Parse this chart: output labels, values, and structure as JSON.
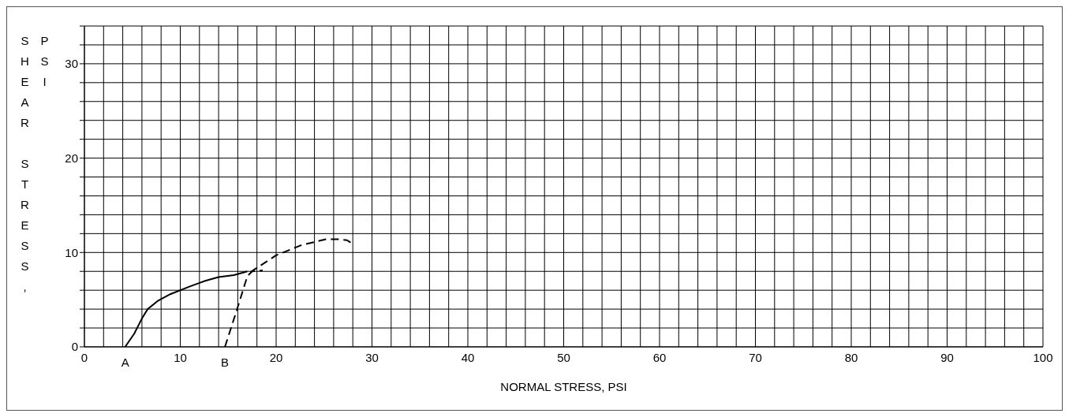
{
  "chart_data": {
    "type": "line",
    "xlabel": "NORMAL STRESS, PSI",
    "ylabel": "SHEAR STRESS, PSI",
    "xlim": [
      0,
      100
    ],
    "ylim": [
      0,
      34
    ],
    "xticks": [
      0,
      {
        "value": 2,
        "label": null
      },
      {
        "value": 4,
        "label": null
      },
      {
        "value": 6,
        "label": null
      },
      {
        "value": 8,
        "label": null
      },
      10,
      {
        "value": 12,
        "label": null
      },
      {
        "value": 14,
        "label": null
      },
      {
        "value": 16,
        "label": null
      },
      {
        "value": 18,
        "label": null
      },
      20,
      {
        "value": 22,
        "label": null
      },
      {
        "value": 24,
        "label": null
      },
      {
        "value": 26,
        "label": null
      },
      {
        "value": 28,
        "label": null
      },
      30,
      {
        "value": 32,
        "label": null
      },
      {
        "value": 34,
        "label": null
      },
      {
        "value": 36,
        "label": null
      },
      {
        "value": 38,
        "label": null
      },
      40,
      {
        "value": 42,
        "label": null
      },
      {
        "value": 44,
        "label": null
      },
      {
        "value": 46,
        "label": null
      },
      {
        "value": 48,
        "label": null
      },
      50,
      {
        "value": 52,
        "label": null
      },
      {
        "value": 54,
        "label": null
      },
      {
        "value": 56,
        "label": null
      },
      {
        "value": 58,
        "label": null
      },
      60,
      {
        "value": 62,
        "label": null
      },
      {
        "value": 64,
        "label": null
      },
      {
        "value": 66,
        "label": null
      },
      {
        "value": 68,
        "label": null
      },
      70,
      {
        "value": 72,
        "label": null
      },
      {
        "value": 74,
        "label": null
      },
      {
        "value": 76,
        "label": null
      },
      {
        "value": 78,
        "label": null
      },
      80,
      {
        "value": 82,
        "label": null
      },
      {
        "value": 84,
        "label": null
      },
      {
        "value": 86,
        "label": null
      },
      {
        "value": 88,
        "label": null
      },
      90,
      {
        "value": 92,
        "label": null
      },
      {
        "value": 94,
        "label": null
      },
      {
        "value": 96,
        "label": null
      },
      {
        "value": 98,
        "label": null
      },
      100
    ],
    "yticks": [
      0,
      {
        "value": 2,
        "label": null
      },
      {
        "value": 4,
        "label": null
      },
      {
        "value": 6,
        "label": null
      },
      {
        "value": 8,
        "label": null
      },
      10,
      {
        "value": 12,
        "label": null
      },
      {
        "value": 14,
        "label": null
      },
      {
        "value": 16,
        "label": null
      },
      {
        "value": 18,
        "label": null
      },
      20,
      {
        "value": 22,
        "label": null
      },
      {
        "value": 24,
        "label": null
      },
      {
        "value": 26,
        "label": null
      },
      {
        "value": 28,
        "label": null
      },
      30,
      {
        "value": 32,
        "label": null
      },
      {
        "value": 34,
        "label": null
      }
    ],
    "grid": true,
    "marker": "none",
    "series": [
      {
        "color": "#000000",
        "line_style": "solid",
        "x": [
          4.25,
          5.2,
          6.0,
          6.6,
          7.7,
          9.0,
          11.0,
          12.6,
          14.0,
          15.6,
          17.0
        ],
        "values": [
          0,
          1.4,
          3.0,
          4.0,
          4.9,
          5.6,
          6.4,
          7.0,
          7.4,
          7.6,
          8.0
        ]
      },
      {
        "color": "#000000",
        "line_style": "dashed",
        "x": [
          14.66,
          15.9,
          17.0,
          17.5,
          18.6
        ],
        "values": [
          0,
          3.9,
          7.5,
          8.0,
          8.1
        ]
      },
      {
        "color": "#000000",
        "line_style": "dashed",
        "x": [
          17.3,
          20.0,
          22.7,
          25.2,
          26.6,
          27.4,
          27.7,
          28.2
        ],
        "values": [
          7.9,
          9.7,
          10.8,
          11.4,
          11.4,
          11.3,
          11.1,
          10.9
        ]
      }
    ],
    "annotations": [
      {
        "text": "A",
        "x": 4.25,
        "y": 0
      },
      {
        "text": "B",
        "x": 14.66,
        "y": 0
      }
    ]
  }
}
